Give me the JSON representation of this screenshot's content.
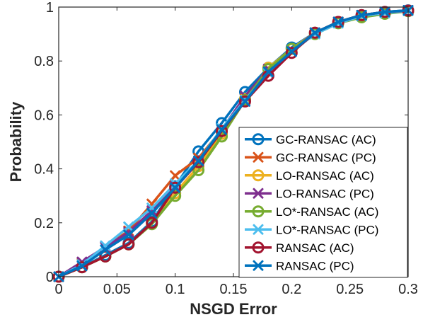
{
  "chart_data": {
    "type": "line",
    "title": "",
    "xlabel": "NSGD Error",
    "ylabel": "Probability",
    "xlim": [
      0,
      0.3
    ],
    "ylim": [
      0,
      1
    ],
    "xticks": [
      0,
      0.05,
      0.1,
      0.15,
      0.2,
      0.25,
      0.3
    ],
    "xtick_labels": [
      "0",
      "0.05",
      "0.1",
      "0.15",
      "0.2",
      "0.25",
      "0.3"
    ],
    "yticks": [
      0,
      0.2,
      0.4,
      0.6,
      0.8,
      1
    ],
    "ytick_labels": [
      "0",
      "0.2",
      "0.4",
      "0.6",
      "0.8",
      "1"
    ],
    "grid": false,
    "legend_position": "lower-right",
    "x": [
      0,
      0.02,
      0.04,
      0.06,
      0.08,
      0.1,
      0.12,
      0.14,
      0.16,
      0.18,
      0.2,
      0.22,
      0.24,
      0.26,
      0.28,
      0.3
    ],
    "series": [
      {
        "name": "GC-RANSAC (AC)",
        "color": "#0072BD",
        "marker": "circle",
        "values": [
          0.0,
          0.035,
          0.08,
          0.125,
          0.205,
          0.335,
          0.465,
          0.57,
          0.685,
          0.775,
          0.85,
          0.905,
          0.945,
          0.97,
          0.982,
          0.988
        ]
      },
      {
        "name": "GC-RANSAC (PC)",
        "color": "#D95319",
        "marker": "x",
        "values": [
          0.0,
          0.05,
          0.11,
          0.17,
          0.27,
          0.375,
          0.44,
          0.545,
          0.66,
          0.77,
          0.84,
          0.905,
          0.945,
          0.97,
          0.98,
          0.988
        ]
      },
      {
        "name": "LO-RANSAC (AC)",
        "color": "#EDB120",
        "marker": "circle",
        "values": [
          0.0,
          0.035,
          0.075,
          0.12,
          0.2,
          0.31,
          0.41,
          0.53,
          0.66,
          0.775,
          0.845,
          0.905,
          0.945,
          0.965,
          0.978,
          0.986
        ]
      },
      {
        "name": "LO-RANSAC (PC)",
        "color": "#7E2F8E",
        "marker": "x",
        "values": [
          0.0,
          0.055,
          0.11,
          0.165,
          0.245,
          0.335,
          0.425,
          0.545,
          0.67,
          0.77,
          0.84,
          0.905,
          0.945,
          0.97,
          0.98,
          0.988
        ]
      },
      {
        "name": "LO*-RANSAC (AC)",
        "color": "#77AC30",
        "marker": "circle",
        "values": [
          0.0,
          0.035,
          0.075,
          0.12,
          0.195,
          0.3,
          0.395,
          0.52,
          0.655,
          0.77,
          0.845,
          0.9,
          0.94,
          0.962,
          0.975,
          0.985
        ]
      },
      {
        "name": "LO*-RANSAC (PC)",
        "color": "#4DBEEE",
        "marker": "x",
        "values": [
          0.0,
          0.045,
          0.115,
          0.185,
          0.255,
          0.345,
          0.43,
          0.55,
          0.655,
          0.755,
          0.835,
          0.9,
          0.94,
          0.967,
          0.978,
          0.986
        ]
      },
      {
        "name": "RANSAC (AC)",
        "color": "#A2142F",
        "marker": "circle",
        "values": [
          0.0,
          0.035,
          0.075,
          0.12,
          0.2,
          0.33,
          0.425,
          0.54,
          0.65,
          0.745,
          0.83,
          0.905,
          0.945,
          0.97,
          0.982,
          0.987
        ]
      },
      {
        "name": "RANSAC (PC)",
        "color": "#0072BD",
        "marker": "x",
        "values": [
          0.0,
          0.04,
          0.1,
          0.155,
          0.235,
          0.33,
          0.43,
          0.545,
          0.65,
          0.76,
          0.835,
          0.905,
          0.945,
          0.97,
          0.982,
          0.988
        ]
      }
    ]
  }
}
